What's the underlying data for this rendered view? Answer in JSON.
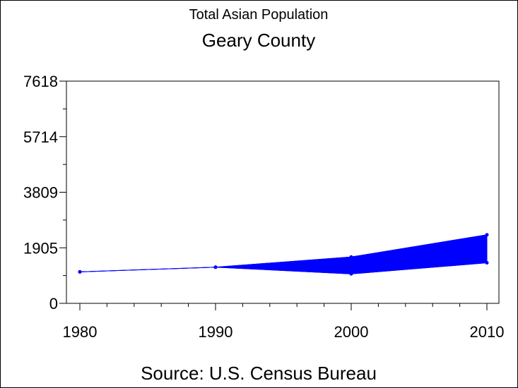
{
  "chart_data": {
    "type": "area",
    "title": "Total Asian Population",
    "subtitle": "Geary County",
    "source": "Source: U.S. Census Bureau",
    "x": [
      1980,
      1990,
      2000,
      2010
    ],
    "xlim": [
      1980,
      2010
    ],
    "xticks": [
      "1980",
      "1990",
      "2000",
      "2010"
    ],
    "ylim": [
      0,
      7618
    ],
    "yticks": [
      "0",
      "1905",
      "3809",
      "5714",
      "7618"
    ],
    "series": [
      {
        "values": [
          1080,
          1240,
          1010,
          1390
        ]
      },
      {
        "values": [
          1080,
          1240,
          1590,
          2350
        ]
      }
    ],
    "grid": false,
    "legend": "none",
    "color": "#0000ff"
  }
}
